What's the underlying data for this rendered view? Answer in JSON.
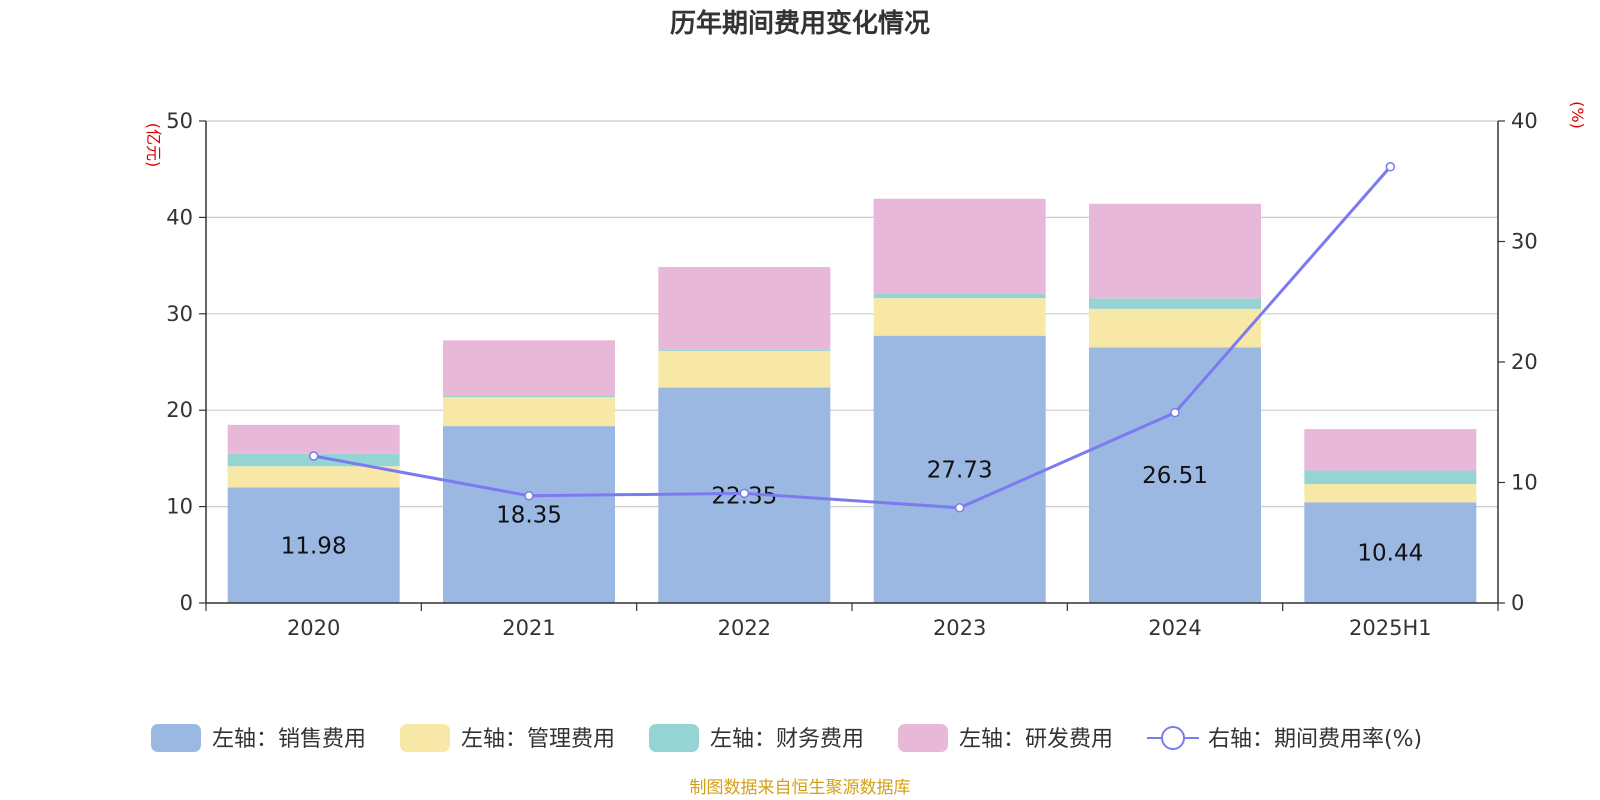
{
  "chart_data": {
    "type": "bar",
    "title": "历年期间费用变化情况",
    "categories": [
      "2020",
      "2021",
      "2022",
      "2023",
      "2024",
      "2025H1"
    ],
    "series": [
      {
        "name": "左轴：销售费用",
        "axis": "left",
        "type": "bar",
        "color": "#9bb8e3",
        "values": [
          11.98,
          18.35,
          22.35,
          27.73,
          26.51,
          10.44
        ]
      },
      {
        "name": "左轴：管理费用",
        "axis": "left",
        "type": "bar",
        "color": "#f8e8a8",
        "values": [
          2.2,
          3.0,
          3.8,
          3.9,
          4.0,
          1.9
        ]
      },
      {
        "name": "左轴：财务费用",
        "axis": "left",
        "type": "bar",
        "color": "#96d4d4",
        "values": [
          1.3,
          0.2,
          0.1,
          0.5,
          1.1,
          1.4
        ]
      },
      {
        "name": "左轴：研发费用",
        "axis": "left",
        "type": "bar",
        "color": "#e8b8d8",
        "values": [
          3.0,
          5.7,
          8.6,
          9.8,
          9.8,
          4.3
        ]
      },
      {
        "name": "右轴：期间费用率(%)",
        "axis": "right",
        "type": "line",
        "color": "#7b7bef",
        "values": [
          12.2,
          8.9,
          9.1,
          7.9,
          15.8,
          36.2
        ]
      }
    ],
    "data_labels": [
      "11.98",
      "18.35",
      "22.35",
      "27.73",
      "26.51",
      "10.44"
    ],
    "y_left": {
      "unit": "(亿元)",
      "min": 0,
      "max": 50,
      "ticks": [
        0,
        10,
        20,
        30,
        40,
        50
      ]
    },
    "y_right": {
      "unit": "(%)",
      "min": 0,
      "max": 40,
      "ticks": [
        0,
        10,
        20,
        30,
        40
      ]
    },
    "grid": true,
    "legend_position": "bottom",
    "source": "制图数据来自恒生聚源数据库"
  }
}
